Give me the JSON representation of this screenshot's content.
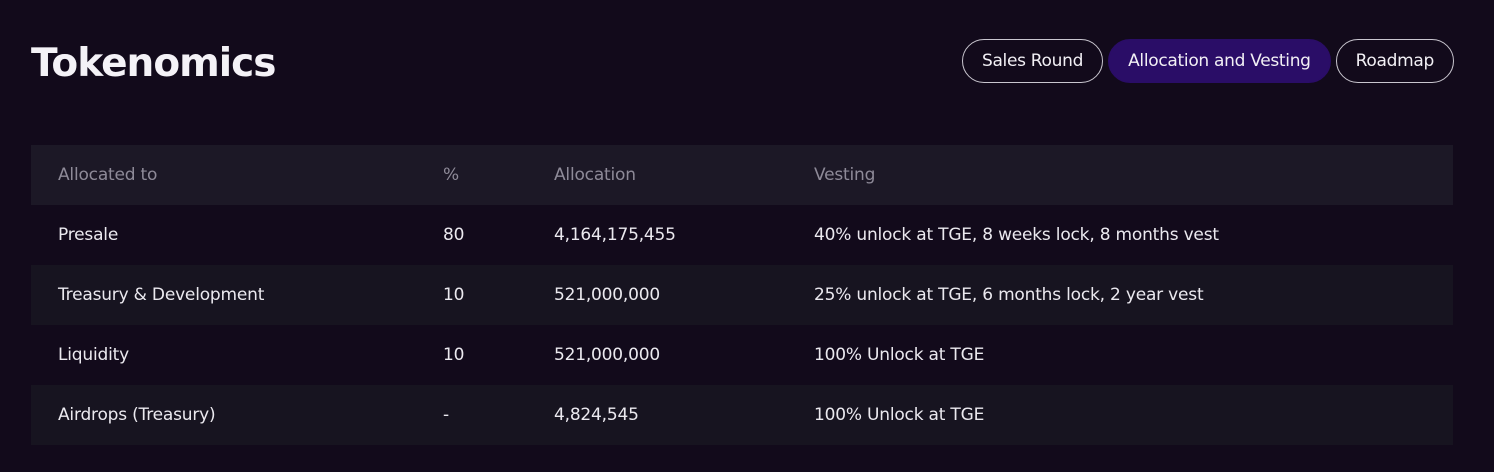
{
  "header": {
    "title": "Tokenomics"
  },
  "tabs": [
    {
      "label": "Sales Round",
      "active": false
    },
    {
      "label": "Allocation and Vesting",
      "active": true
    },
    {
      "label": "Roadmap",
      "active": false
    }
  ],
  "table": {
    "columns": [
      "Allocated to",
      "%",
      "Allocation",
      "Vesting"
    ],
    "rows": [
      {
        "allocated_to": "Presale",
        "percent": "80",
        "allocation": "4,164,175,455",
        "vesting": "40% unlock at TGE, 8 weeks lock, 8 months vest"
      },
      {
        "allocated_to": "Treasury & Development",
        "percent": "10",
        "allocation": "521,000,000",
        "vesting": "25% unlock at TGE, 6 months lock, 2 year vest"
      },
      {
        "allocated_to": "Liquidity",
        "percent": "10",
        "allocation": "521,000,000",
        "vesting": "100% Unlock at TGE"
      },
      {
        "allocated_to": "Airdrops (Treasury)",
        "percent": "-",
        "allocation": "4,824,545",
        "vesting": "100% Unlock at TGE"
      }
    ]
  },
  "colors": {
    "background": "#120a1b",
    "active_tab": "#2a0d67",
    "header_row": "#1c1826",
    "alt_row": "#171420"
  }
}
